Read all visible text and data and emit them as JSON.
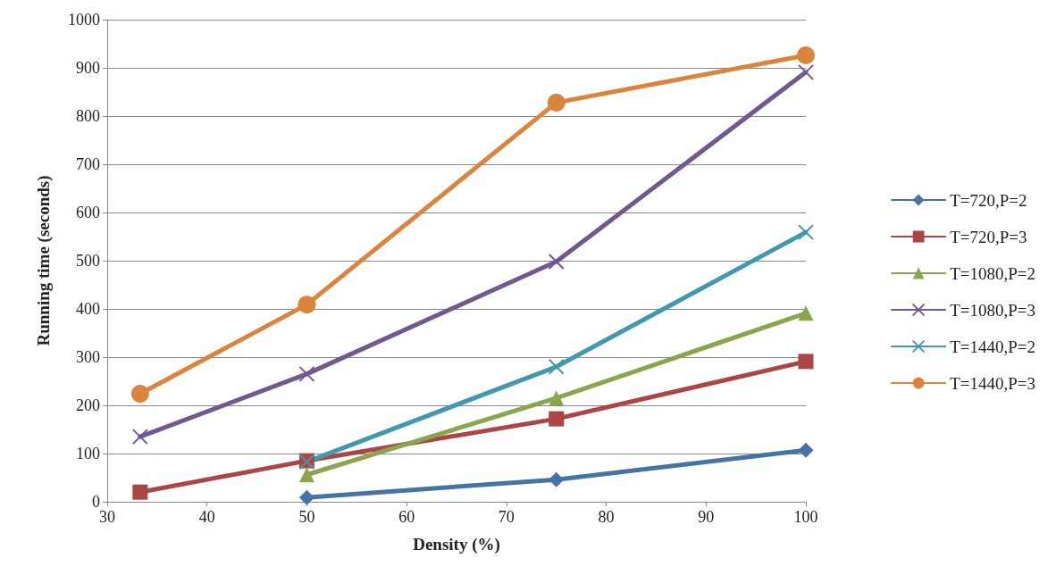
{
  "chart_data": {
    "type": "line",
    "xlabel": "Density (%)",
    "ylabel": "Running time (seconds)",
    "xlim": [
      30,
      100
    ],
    "xticks": [
      30,
      40,
      50,
      60,
      70,
      80,
      90,
      100
    ],
    "ylim": [
      0,
      1000
    ],
    "yticks": [
      0,
      100,
      200,
      300,
      400,
      500,
      600,
      700,
      800,
      900,
      1000
    ],
    "grid": "y",
    "legend": "right",
    "line_style": "solid",
    "series": [
      {
        "name": "T=720,P=2",
        "color": "#4572a7",
        "marker": "diamond",
        "x": [
          50,
          75,
          100
        ],
        "values": [
          9,
          46,
          107
        ]
      },
      {
        "name": "T=720,P=3",
        "color": "#aa4643",
        "marker": "square",
        "x": [
          33.3,
          50,
          75,
          100
        ],
        "values": [
          20,
          85,
          172,
          291
        ]
      },
      {
        "name": "T=1080,P=2",
        "color": "#89a54e",
        "marker": "triangle",
        "x": [
          50,
          75,
          100
        ],
        "values": [
          56,
          215,
          391
        ]
      },
      {
        "name": "T=1080,P=3",
        "color": "#71588f",
        "marker": "cross",
        "x": [
          33.3,
          50,
          75,
          100
        ],
        "values": [
          135,
          265,
          498,
          891
        ]
      },
      {
        "name": "T=1440,P=2",
        "color": "#4198af",
        "marker": "cross",
        "x": [
          50,
          75,
          100
        ],
        "values": [
          83,
          280,
          559
        ]
      },
      {
        "name": "T=1440,P=3",
        "color": "#db843d",
        "marker": "circle",
        "x": [
          33.3,
          50,
          75,
          100
        ],
        "values": [
          224,
          409,
          828,
          926
        ]
      }
    ]
  }
}
